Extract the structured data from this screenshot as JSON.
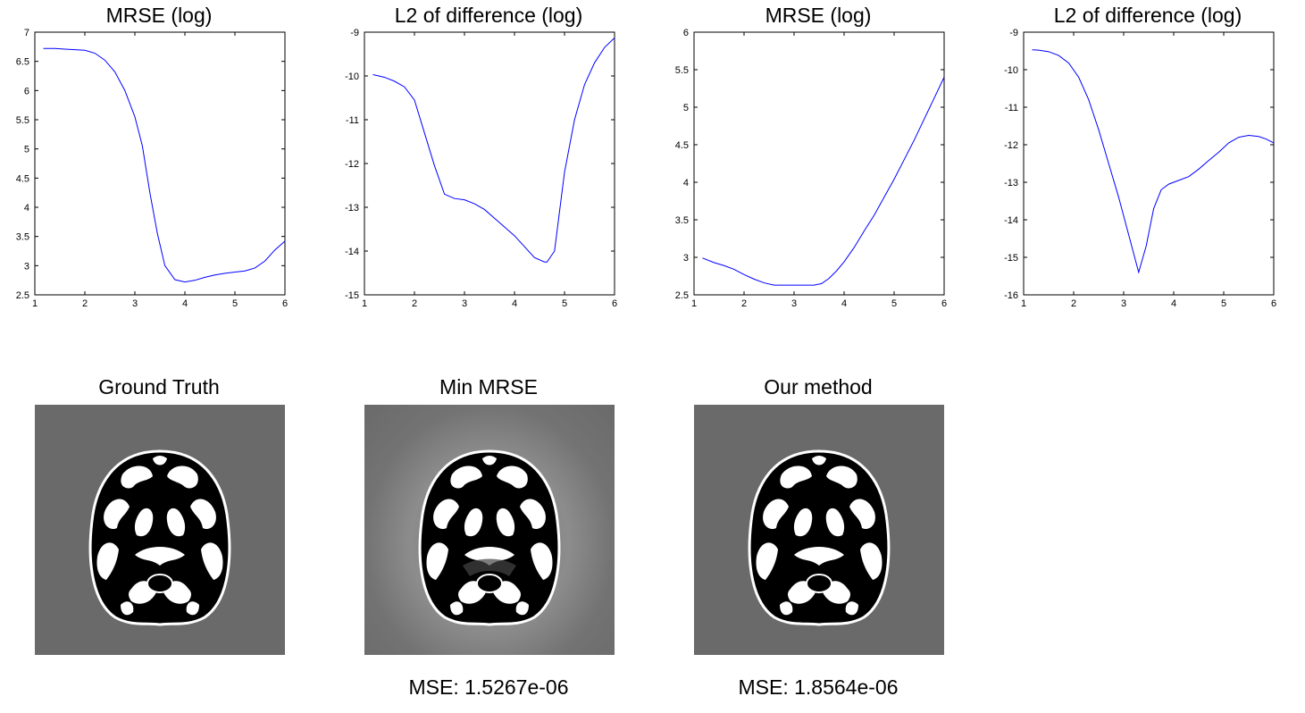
{
  "chart_data": [
    {
      "type": "line",
      "title": "MRSE (log)",
      "xlim": [
        1,
        6
      ],
      "ylim": [
        2.5,
        7
      ],
      "xticks": [
        "1",
        "2",
        "3",
        "4",
        "5",
        "6"
      ],
      "yticks": [
        "2.5",
        "3",
        "3.5",
        "4",
        "4.5",
        "5",
        "5.5",
        "6",
        "6.5",
        "7"
      ],
      "series": [
        {
          "name": "MRSE",
          "color": "#0000ff",
          "x": [
            1.17,
            1.4,
            1.6,
            1.8,
            2.0,
            2.2,
            2.4,
            2.6,
            2.8,
            3.0,
            3.15,
            3.3,
            3.45,
            3.6,
            3.8,
            4.0,
            4.2,
            4.4,
            4.6,
            4.8,
            5.0,
            5.2,
            5.4,
            5.6,
            5.8,
            6.0
          ],
          "y": [
            6.72,
            6.72,
            6.71,
            6.7,
            6.69,
            6.64,
            6.52,
            6.32,
            6.0,
            5.55,
            5.05,
            4.25,
            3.55,
            3.0,
            2.76,
            2.72,
            2.75,
            2.8,
            2.84,
            2.87,
            2.89,
            2.91,
            2.96,
            3.08,
            3.27,
            3.42
          ]
        }
      ]
    },
    {
      "type": "line",
      "title": "L2 of difference (log)",
      "xlim": [
        1,
        6
      ],
      "ylim": [
        -15,
        -9
      ],
      "xticks": [
        "1",
        "2",
        "3",
        "4",
        "5",
        "6"
      ],
      "yticks": [
        "-15",
        "-14",
        "-13",
        "-12",
        "-11",
        "-10",
        "-9"
      ],
      "series": [
        {
          "name": "L2",
          "color": "#0000ff",
          "x": [
            1.17,
            1.4,
            1.6,
            1.8,
            2.0,
            2.2,
            2.4,
            2.6,
            2.8,
            3.0,
            3.2,
            3.4,
            3.6,
            3.8,
            4.0,
            4.2,
            4.4,
            4.6,
            4.65,
            4.8,
            5.0,
            5.2,
            5.4,
            5.6,
            5.8,
            6.0
          ],
          "y": [
            -9.97,
            -10.03,
            -10.12,
            -10.25,
            -10.55,
            -11.3,
            -12.05,
            -12.7,
            -12.8,
            -12.83,
            -12.92,
            -13.05,
            -13.25,
            -13.45,
            -13.65,
            -13.9,
            -14.15,
            -14.25,
            -14.25,
            -14.0,
            -12.2,
            -11.0,
            -10.2,
            -9.7,
            -9.35,
            -9.13
          ]
        }
      ]
    },
    {
      "type": "line",
      "title": "MRSE (log)",
      "xlim": [
        1,
        6
      ],
      "ylim": [
        2.5,
        6
      ],
      "xticks": [
        "1",
        "2",
        "3",
        "4",
        "5",
        "6"
      ],
      "yticks": [
        "2.5",
        "3",
        "3.5",
        "4",
        "4.5",
        "5",
        "5.5",
        "6"
      ],
      "series": [
        {
          "name": "MRSE",
          "color": "#0000ff",
          "x": [
            1.17,
            1.4,
            1.6,
            1.8,
            2.0,
            2.2,
            2.4,
            2.6,
            2.8,
            3.0,
            3.2,
            3.4,
            3.55,
            3.7,
            3.85,
            4.0,
            4.2,
            4.4,
            4.6,
            4.8,
            5.0,
            5.2,
            5.4,
            5.6,
            5.8,
            6.0
          ],
          "y": [
            2.99,
            2.93,
            2.89,
            2.84,
            2.77,
            2.71,
            2.66,
            2.63,
            2.63,
            2.63,
            2.63,
            2.63,
            2.65,
            2.72,
            2.82,
            2.94,
            3.13,
            3.35,
            3.56,
            3.8,
            4.04,
            4.3,
            4.56,
            4.84,
            5.12,
            5.4
          ]
        }
      ]
    },
    {
      "type": "line",
      "title": "L2 of difference (log)",
      "xlim": [
        1,
        6
      ],
      "ylim": [
        -16,
        -9
      ],
      "xticks": [
        "1",
        "2",
        "3",
        "4",
        "5",
        "6"
      ],
      "yticks": [
        "-16",
        "-15",
        "-14",
        "-13",
        "-12",
        "-11",
        "-10",
        "-9"
      ],
      "series": [
        {
          "name": "L2",
          "color": "#0000ff",
          "x": [
            1.17,
            1.3,
            1.5,
            1.7,
            1.9,
            2.1,
            2.3,
            2.5,
            2.7,
            2.9,
            3.1,
            3.3,
            3.45,
            3.6,
            3.75,
            3.9,
            4.1,
            4.3,
            4.5,
            4.7,
            4.9,
            5.1,
            5.3,
            5.5,
            5.7,
            5.85,
            6.0
          ],
          "y": [
            -9.47,
            -9.48,
            -9.52,
            -9.62,
            -9.82,
            -10.2,
            -10.8,
            -11.6,
            -12.5,
            -13.4,
            -14.4,
            -15.4,
            -14.7,
            -13.7,
            -13.2,
            -13.05,
            -12.95,
            -12.85,
            -12.65,
            -12.42,
            -12.2,
            -11.95,
            -11.8,
            -11.75,
            -11.78,
            -11.85,
            -11.95
          ]
        }
      ]
    }
  ],
  "images": [
    {
      "title": "Ground Truth",
      "mse": ""
    },
    {
      "title": "Min MRSE",
      "mse": "MSE: 1.5267e-06"
    },
    {
      "title": "Our method",
      "mse": "MSE: 1.8564e-06"
    }
  ]
}
